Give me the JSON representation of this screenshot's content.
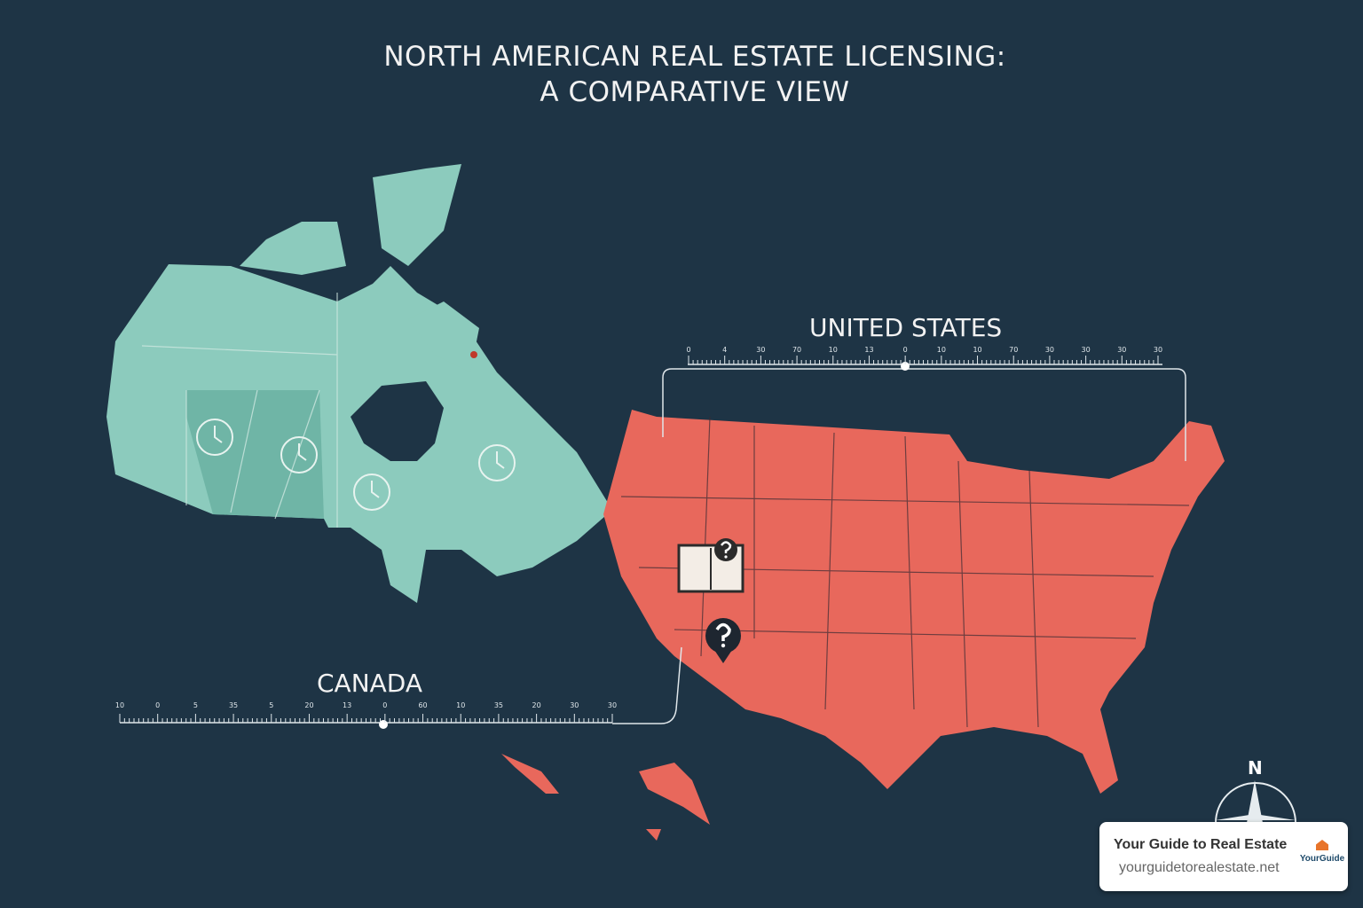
{
  "title": {
    "line1": "NORTH AMERICAN REAL ESTATE LICENSING:",
    "line2": "A COMPARATIVE VIEW"
  },
  "countries": {
    "us_label": "UNITED STATES",
    "canada_label": "CANADA"
  },
  "us_scale_ticks": [
    "0",
    "4",
    "30",
    "70",
    "10",
    "13",
    "0",
    "10",
    "10",
    "70",
    "30",
    "30",
    "30",
    "30"
  ],
  "canada_scale_ticks": [
    "10",
    "0",
    "5",
    "35",
    "5",
    "20",
    "13",
    "0",
    "60",
    "10",
    "35",
    "20",
    "30",
    "30"
  ],
  "compass": {
    "north": "N"
  },
  "badge": {
    "title": "Your Guide to Real Estate",
    "url": "yourguidetorealestate.net",
    "logo_text": "YourGuide"
  },
  "colors": {
    "background": "#1e3445",
    "canada": "#8ccbbd",
    "united_states": "#e8685c"
  },
  "icons": [
    "clock-icon",
    "book-question-icon",
    "question-pin-icon",
    "compass-icon"
  ]
}
